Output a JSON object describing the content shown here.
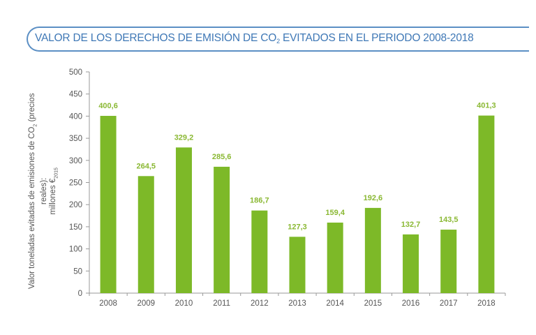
{
  "title": {
    "prefix": "VALOR DE LOS DERECHOS DE EMISIÓN DE CO",
    "subscript": "2",
    "suffix": " EVITADOS EN EL PERIODO 2008-2018"
  },
  "ylabel": {
    "line1_prefix": "Valor toneladas evitadas de emisiones de CO",
    "line1_sub": "2",
    "line1_suffix": " (precios reales):",
    "line2_prefix": "millones €",
    "line2_sub": "2015"
  },
  "colors": {
    "bar": "#7db928",
    "label": "#8ab833",
    "title": "#3f78b6",
    "axis": "#999999"
  },
  "chart_data": {
    "type": "bar",
    "title": "VALOR DE LOS DERECHOS DE EMISIÓN DE CO2 EVITADOS EN EL PERIODO 2008-2018",
    "xlabel": "",
    "ylabel": "Valor toneladas evitadas de emisiones de CO2 (precios reales): millones €2015",
    "categories": [
      "2008",
      "2009",
      "2010",
      "2011",
      "2012",
      "2013",
      "2014",
      "2015",
      "2016",
      "2017",
      "2018"
    ],
    "values": [
      400.6,
      264.5,
      329.2,
      285.6,
      186.7,
      127.3,
      159.4,
      192.6,
      132.7,
      143.5,
      401.3
    ],
    "value_labels": [
      "400,6",
      "264,5",
      "329,2",
      "285,6",
      "186,7",
      "127,3",
      "159,4",
      "192,6",
      "132,7",
      "143,5",
      "401,3"
    ],
    "ylim": [
      0,
      500
    ],
    "yticks": [
      0,
      50,
      100,
      150,
      200,
      250,
      300,
      350,
      400,
      450,
      500
    ],
    "grid": false,
    "legend": "none"
  }
}
